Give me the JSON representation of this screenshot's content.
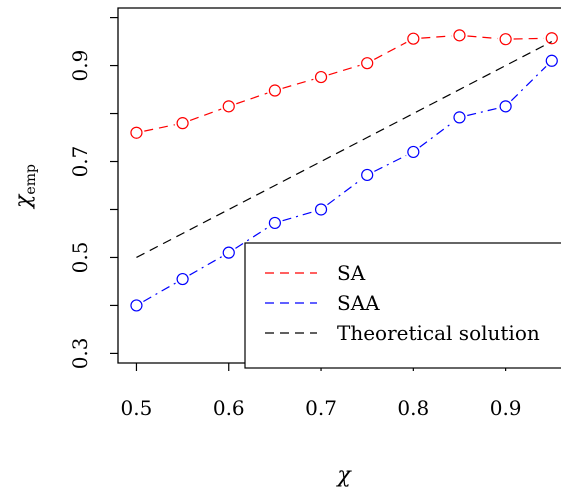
{
  "chart_data": {
    "type": "line",
    "title": "",
    "xlabel": "χ",
    "ylabel_main": "χ",
    "ylabel_sub": "emp",
    "xlim": [
      0.48,
      0.96
    ],
    "ylim": [
      0.28,
      1.02
    ],
    "xticks": [
      0.5,
      0.6,
      0.7,
      0.8,
      0.9
    ],
    "xtick_labels": [
      "0.5",
      "0.6",
      "0.7",
      "0.8",
      "0.9"
    ],
    "yticks": [
      0.3,
      0.4,
      0.5,
      0.6,
      0.7,
      0.8,
      0.9,
      1.0
    ],
    "ytick_labels": [
      "0.3",
      "",
      "0.5",
      "",
      "0.7",
      "",
      "0.9",
      ""
    ],
    "x": [
      0.5,
      0.55,
      0.6,
      0.65,
      0.7,
      0.75,
      0.8,
      0.85,
      0.9,
      0.95
    ],
    "series": [
      {
        "name": "SA",
        "color": "#ff0000",
        "dash": "dash",
        "markers": true,
        "values": [
          0.76,
          0.78,
          0.815,
          0.848,
          0.876,
          0.905,
          0.956,
          0.963,
          0.955,
          0.957
        ]
      },
      {
        "name": "SAA",
        "color": "#0000ff",
        "dash": "dashdot",
        "markers": true,
        "values": [
          0.4,
          0.455,
          0.51,
          0.572,
          0.6,
          0.672,
          0.72,
          0.792,
          0.815,
          0.91
        ]
      },
      {
        "name": "Theoretical solution",
        "color": "#000000",
        "dash": "dash",
        "markers": false,
        "values": [
          0.5,
          0.55,
          0.6,
          0.65,
          0.7,
          0.75,
          0.8,
          0.85,
          0.9,
          0.95
        ]
      }
    ],
    "legend_position": "bottom-right",
    "grid": false
  }
}
